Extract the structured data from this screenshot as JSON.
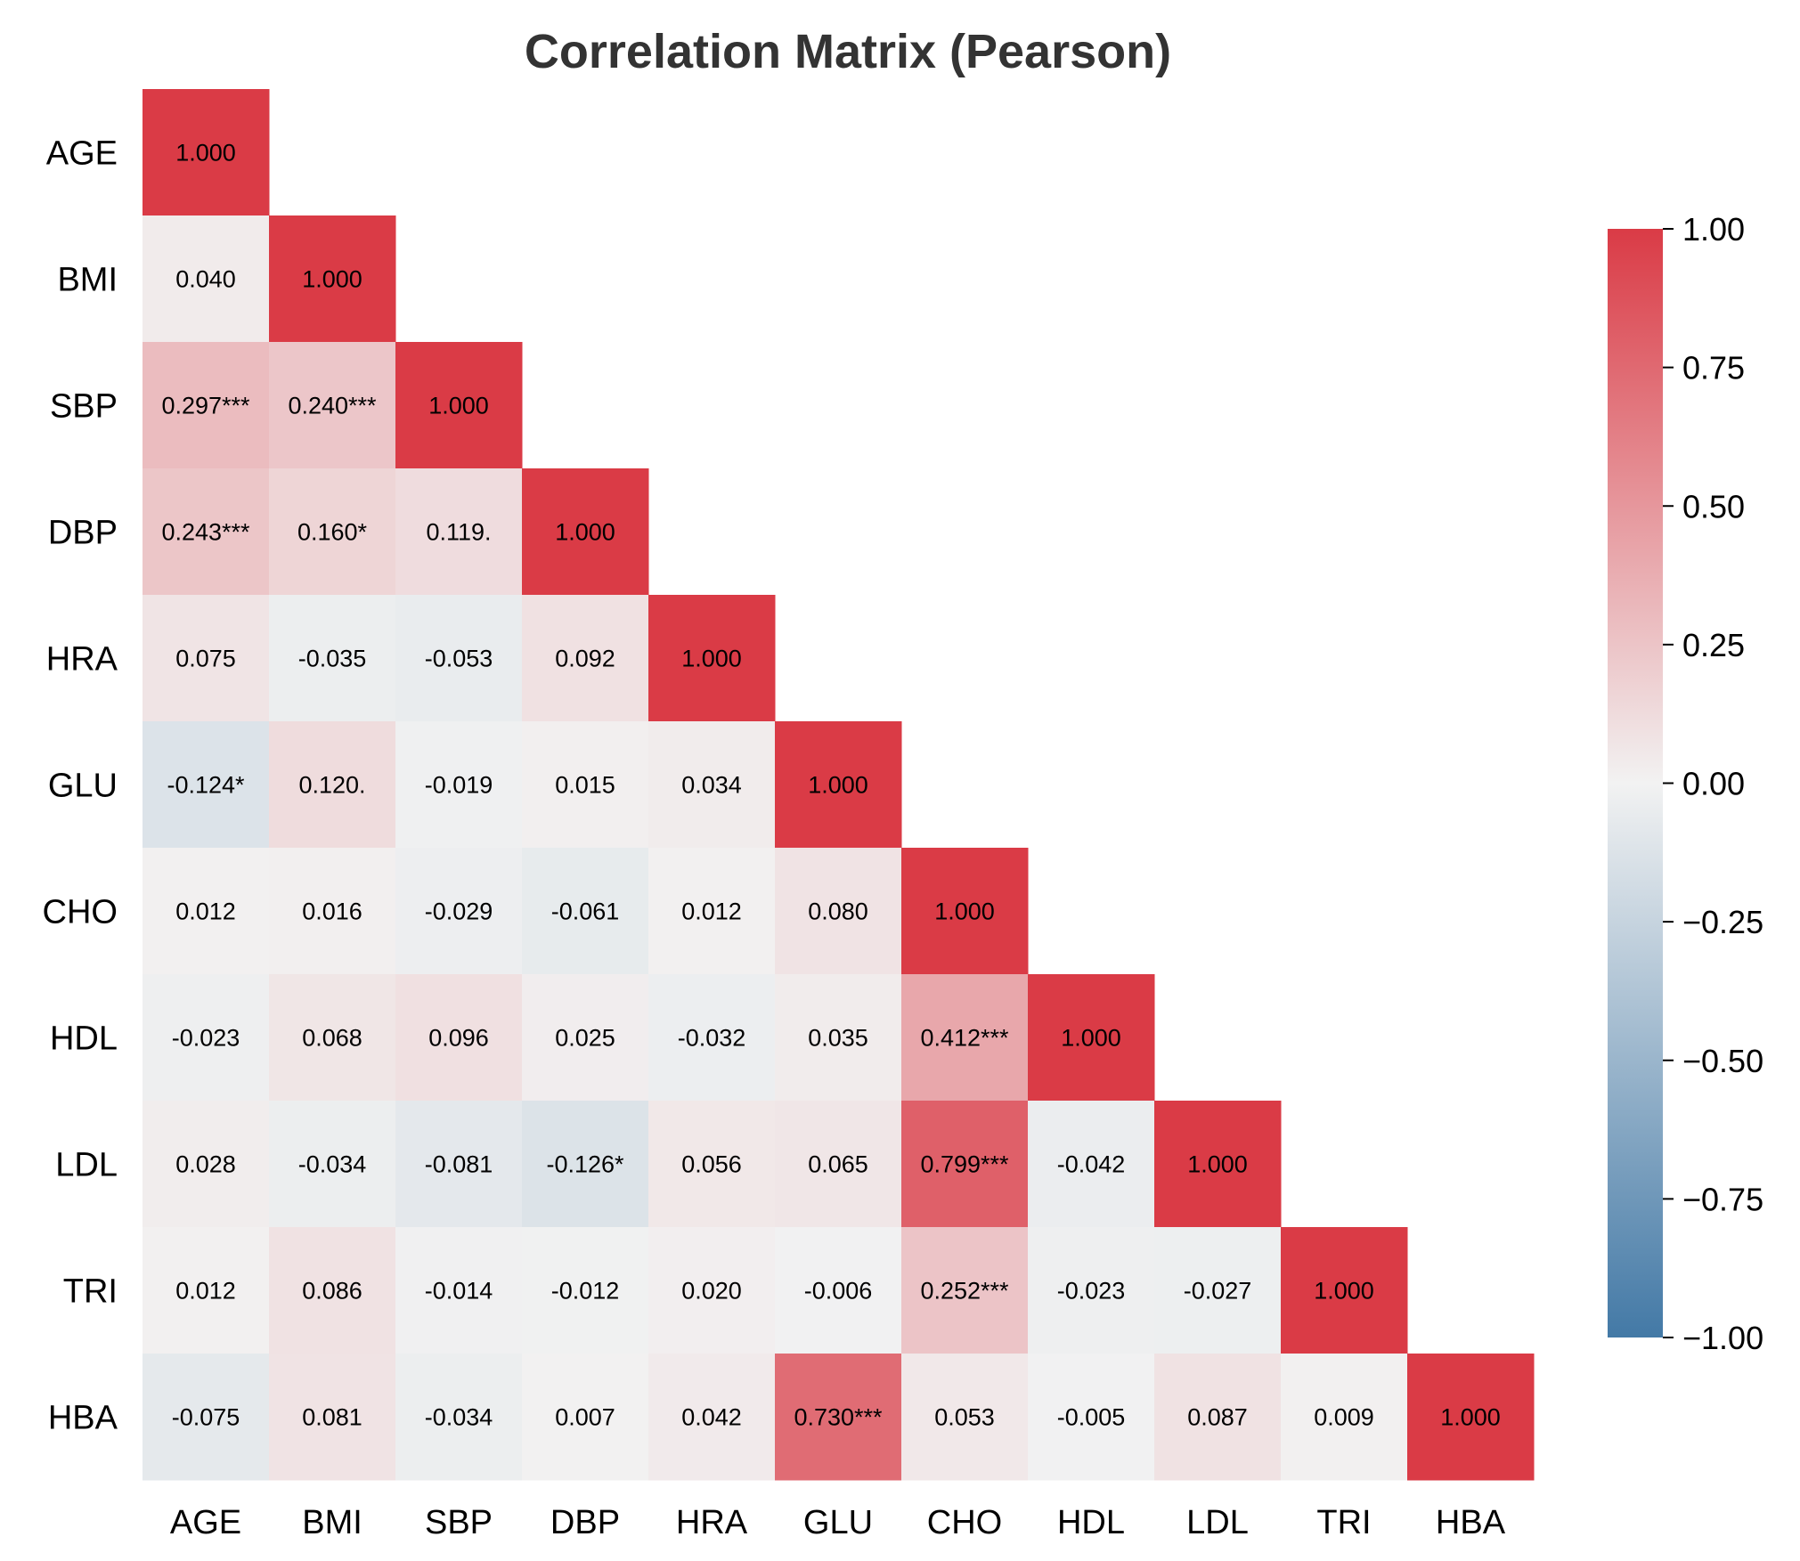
{
  "chart_data": {
    "type": "heatmap",
    "title": "Correlation Matrix (Pearson)",
    "variables": [
      "AGE",
      "BMI",
      "SBP",
      "DBP",
      "HRA",
      "GLU",
      "CHO",
      "HDL",
      "LDL",
      "TRI",
      "HBA"
    ],
    "lower_triangle_only": true,
    "values": [
      [
        1.0
      ],
      [
        0.04,
        1.0
      ],
      [
        0.297,
        0.24,
        1.0
      ],
      [
        0.243,
        0.16,
        0.119,
        1.0
      ],
      [
        0.075,
        -0.035,
        -0.053,
        0.092,
        1.0
      ],
      [
        -0.124,
        0.12,
        -0.019,
        0.015,
        0.034,
        1.0
      ],
      [
        0.012,
        0.016,
        -0.029,
        -0.061,
        0.012,
        0.08,
        1.0
      ],
      [
        -0.023,
        0.068,
        0.096,
        0.025,
        -0.032,
        0.035,
        0.412,
        1.0
      ],
      [
        0.028,
        -0.034,
        -0.081,
        -0.126,
        0.056,
        0.065,
        0.799,
        -0.042,
        1.0
      ],
      [
        0.012,
        0.086,
        -0.014,
        -0.012,
        0.02,
        -0.006,
        0.252,
        -0.023,
        -0.027,
        1.0
      ],
      [
        -0.075,
        0.081,
        -0.034,
        0.007,
        0.042,
        0.73,
        0.053,
        -0.005,
        0.087,
        0.009,
        1.0
      ]
    ],
    "labels": [
      [
        "1.000"
      ],
      [
        "0.040",
        "1.000"
      ],
      [
        "0.297***",
        "0.240***",
        "1.000"
      ],
      [
        "0.243***",
        "0.160*",
        "0.119.",
        "1.000"
      ],
      [
        "0.075",
        "-0.035",
        "-0.053",
        "0.092",
        "1.000"
      ],
      [
        "-0.124*",
        "0.120.",
        "-0.019",
        "0.015",
        "0.034",
        "1.000"
      ],
      [
        "0.012",
        "0.016",
        "-0.029",
        "-0.061",
        "0.012",
        "0.080",
        "1.000"
      ],
      [
        "-0.023",
        "0.068",
        "0.096",
        "0.025",
        "-0.032",
        "0.035",
        "0.412***",
        "1.000"
      ],
      [
        "0.028",
        "-0.034",
        "-0.081",
        "-0.126*",
        "0.056",
        "0.065",
        "0.799***",
        "-0.042",
        "1.000"
      ],
      [
        "0.012",
        "0.086",
        "-0.014",
        "-0.012",
        "0.020",
        "-0.006",
        "0.252***",
        "-0.023",
        "-0.027",
        "1.000"
      ],
      [
        "-0.075",
        "0.081",
        "-0.034",
        "0.007",
        "0.042",
        "0.730***",
        "0.053",
        "-0.005",
        "0.087",
        "0.009",
        "1.000"
      ]
    ],
    "colorbar": {
      "range": [
        -1.0,
        1.0
      ],
      "ticks": [
        1.0,
        0.75,
        0.5,
        0.25,
        0.0,
        -0.25,
        -0.5,
        -0.75,
        -1.0
      ],
      "tick_labels": [
        "1.00",
        "0.75",
        "0.50",
        "0.25",
        "0.00",
        "−0.25",
        "−0.50",
        "−0.75",
        "−1.00"
      ],
      "colors": {
        "low": "#4379A6",
        "mid": "#F2F2F2",
        "high": "#DA3B46"
      }
    }
  }
}
